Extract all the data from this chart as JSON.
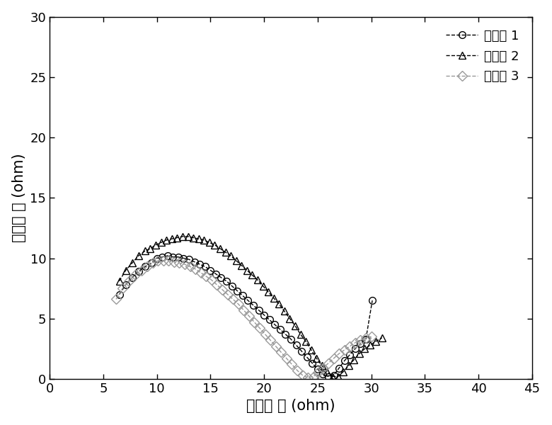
{
  "title": "",
  "xlabel": "实部阱 抗 (ohm)",
  "ylabel": "虚部阱 抗 (ohm)",
  "xlim": [
    0,
    45
  ],
  "ylim": [
    0,
    30
  ],
  "xticks": [
    0,
    5,
    10,
    15,
    20,
    25,
    30,
    35,
    40,
    45
  ],
  "yticks": [
    0,
    5,
    10,
    15,
    20,
    25,
    30
  ],
  "legend_labels": [
    "实施例 1",
    "实施例 2",
    "实施例 3"
  ],
  "series1_x": [
    6.5,
    7.1,
    7.7,
    8.3,
    8.9,
    9.5,
    10.0,
    10.5,
    11.0,
    11.5,
    12.0,
    12.5,
    13.0,
    13.5,
    14.0,
    14.5,
    15.0,
    15.5,
    16.0,
    16.5,
    17.0,
    17.5,
    18.0,
    18.5,
    19.0,
    19.5,
    20.0,
    20.5,
    21.0,
    21.5,
    22.0,
    22.5,
    23.0,
    23.5,
    24.0,
    24.5,
    25.0,
    25.5,
    26.0,
    26.5,
    27.0,
    27.5,
    28.0,
    28.5,
    29.0,
    29.5,
    30.1
  ],
  "series1_y": [
    7.0,
    7.8,
    8.4,
    8.9,
    9.3,
    9.6,
    10.0,
    10.1,
    10.2,
    10.1,
    10.1,
    10.0,
    9.9,
    9.7,
    9.5,
    9.3,
    9.0,
    8.7,
    8.4,
    8.1,
    7.7,
    7.3,
    6.9,
    6.5,
    6.1,
    5.7,
    5.3,
    4.9,
    4.5,
    4.1,
    3.7,
    3.3,
    2.8,
    2.3,
    1.8,
    1.3,
    0.8,
    0.4,
    0.2,
    0.3,
    0.9,
    1.5,
    2.0,
    2.5,
    2.9,
    3.3,
    6.5
  ],
  "series2_x": [
    6.5,
    7.1,
    7.7,
    8.3,
    8.9,
    9.4,
    9.9,
    10.4,
    10.9,
    11.4,
    11.9,
    12.4,
    12.9,
    13.4,
    13.9,
    14.4,
    14.9,
    15.4,
    15.9,
    16.4,
    16.9,
    17.4,
    17.9,
    18.4,
    18.9,
    19.4,
    19.9,
    20.4,
    20.9,
    21.4,
    21.9,
    22.4,
    22.9,
    23.4,
    23.9,
    24.4,
    24.9,
    25.4,
    25.9,
    26.4,
    26.9,
    27.4,
    27.9,
    28.4,
    28.9,
    29.4,
    29.9,
    30.4,
    31.0
  ],
  "series2_y": [
    8.1,
    9.0,
    9.6,
    10.2,
    10.6,
    10.8,
    11.1,
    11.3,
    11.5,
    11.6,
    11.7,
    11.8,
    11.8,
    11.7,
    11.6,
    11.5,
    11.3,
    11.1,
    10.8,
    10.5,
    10.2,
    9.8,
    9.4,
    9.0,
    8.6,
    8.2,
    7.7,
    7.2,
    6.7,
    6.2,
    5.6,
    5.0,
    4.4,
    3.7,
    3.1,
    2.4,
    1.7,
    1.1,
    0.6,
    0.2,
    0.2,
    0.6,
    1.1,
    1.6,
    2.1,
    2.5,
    2.8,
    3.1,
    3.4
  ],
  "series3_x": [
    6.2,
    6.8,
    7.4,
    8.0,
    8.6,
    9.1,
    9.6,
    10.1,
    10.6,
    11.1,
    11.6,
    12.1,
    12.6,
    13.1,
    13.6,
    14.1,
    14.6,
    15.1,
    15.6,
    16.1,
    16.6,
    17.1,
    17.6,
    18.1,
    18.6,
    19.1,
    19.6,
    20.1,
    20.6,
    21.1,
    21.6,
    22.1,
    22.6,
    23.1,
    23.6,
    24.1,
    24.6,
    25.0,
    25.5,
    26.0,
    26.5,
    27.0,
    27.5,
    28.0,
    28.5,
    29.0,
    29.5,
    30.0
  ],
  "series3_y": [
    6.6,
    7.5,
    8.1,
    8.6,
    9.0,
    9.3,
    9.6,
    9.8,
    9.8,
    9.8,
    9.7,
    9.6,
    9.5,
    9.3,
    9.1,
    8.8,
    8.5,
    8.2,
    7.8,
    7.4,
    7.0,
    6.6,
    6.2,
    5.7,
    5.2,
    4.7,
    4.2,
    3.7,
    3.2,
    2.7,
    2.2,
    1.7,
    1.2,
    0.7,
    0.3,
    0.1,
    0.2,
    0.5,
    0.9,
    1.3,
    1.7,
    2.1,
    2.4,
    2.7,
    3.0,
    3.2,
    3.4,
    3.5
  ],
  "line_color1": "#000000",
  "line_color2": "#000000",
  "line_color3": "#999999",
  "marker1": "o",
  "marker2": "^",
  "marker3": "D",
  "linestyle1": "--",
  "linestyle2": "--",
  "linestyle3": "--",
  "markersize": 7,
  "linewidth": 1.0,
  "background_color": "#ffffff",
  "label_fontsize": 15,
  "tick_fontsize": 13,
  "legend_fontsize": 13
}
